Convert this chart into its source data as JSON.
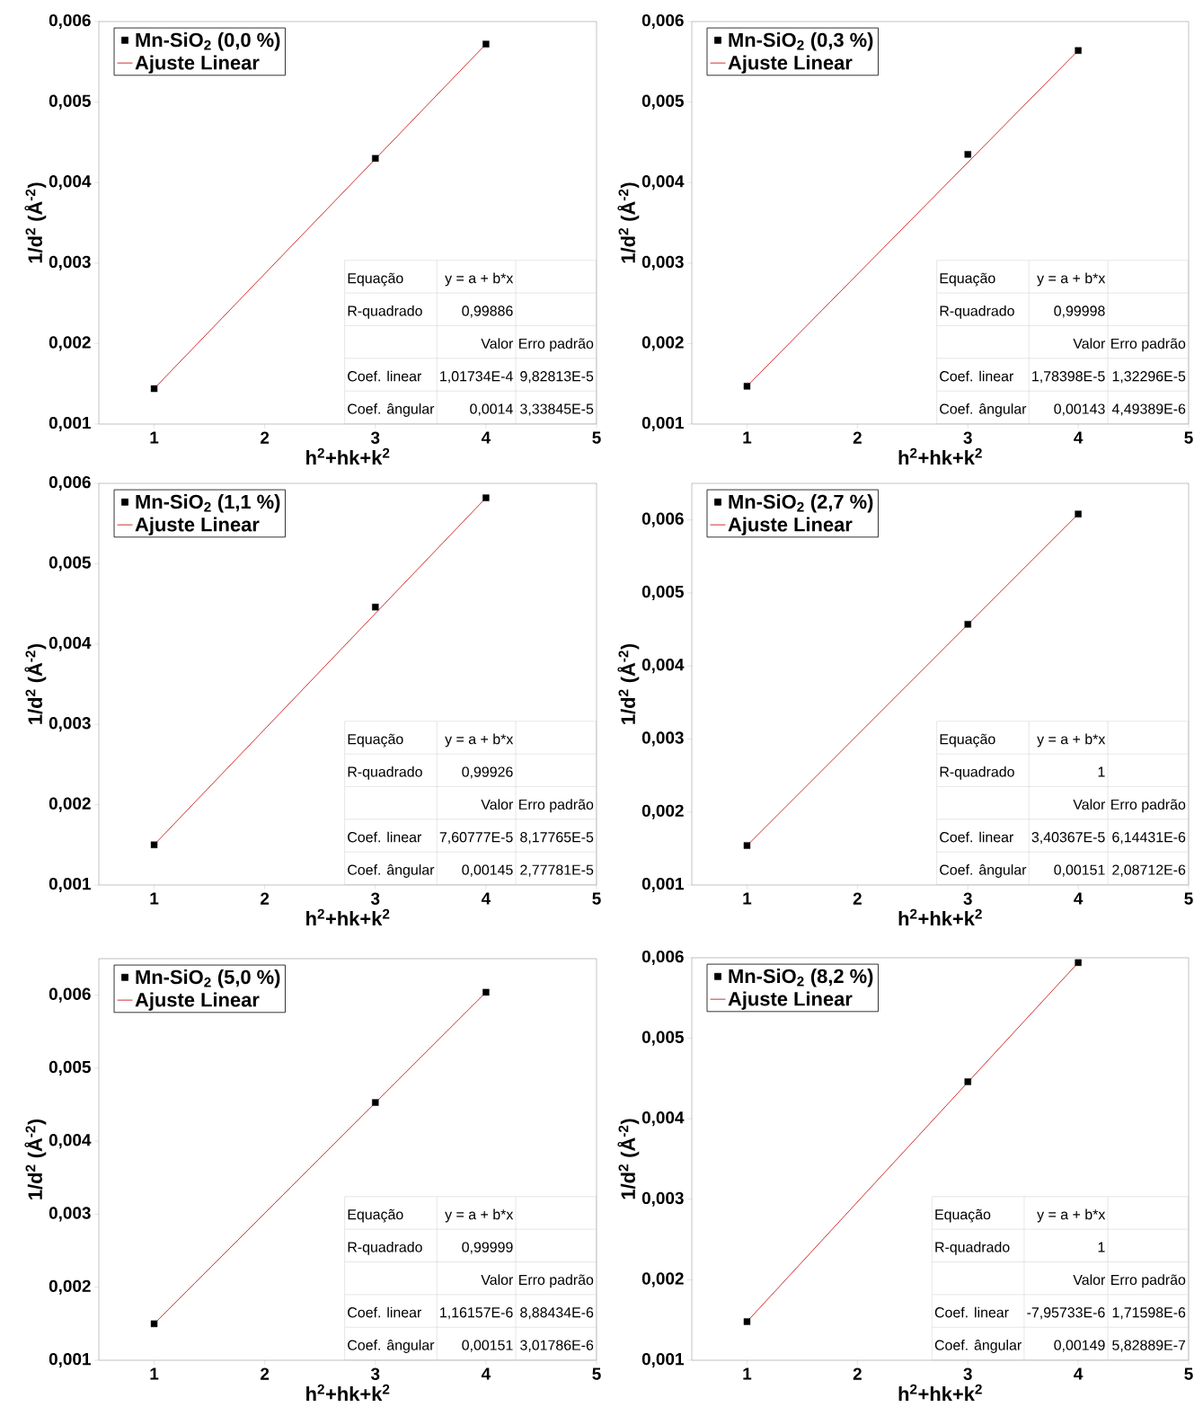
{
  "chart_data": [
    {
      "type": "scatter",
      "legend": "top left",
      "xlabel": "h$^{2}$+hk+k$^{2}$",
      "ylabel": "1/d$^{2}$ (Å$^{-2}$)",
      "xlim": [
        0.5,
        5
      ],
      "xticks": [
        1,
        2,
        3,
        4,
        5
      ],
      "ylim": [
        0.001,
        0.006
      ],
      "yticks": [
        {
          "value": 0.001,
          "label": "0,001"
        },
        {
          "value": 0.002,
          "label": "0,002"
        },
        {
          "value": 0.003,
          "label": "0,003"
        },
        {
          "value": 0.004,
          "label": "0,004"
        },
        {
          "value": 0.005,
          "label": "0,005"
        },
        {
          "value": 0.006,
          "label": "0,006"
        }
      ],
      "series": [
        {
          "name": "Mn-SiO$_{2}$ (0,0 %)",
          "type": "scatter",
          "marker": "square",
          "color": "#000000",
          "x": [
            1,
            3,
            4
          ],
          "values": [
            0.00144,
            0.0043,
            0.00572
          ]
        },
        {
          "name": "Ajuste Linear",
          "type": "line",
          "marker": "none",
          "color": "#d03030",
          "x": [
            1,
            4
          ],
          "values": [
            0.00144,
            0.00572
          ]
        }
      ],
      "annotations": [
        "Equação",
        "y = a + b*x",
        "R-quadrado",
        "0,99886",
        "Valor",
        "Erro padrão",
        "Coef. linear",
        "1,01734E-4",
        "9,82813E-5",
        "Coef. ângular",
        "0,0014",
        "3,33845E-5"
      ]
    },
    {
      "type": "scatter",
      "legend": "top left",
      "xlabel": "h$^{2}$+hk+k$^{2}$",
      "ylabel": "1/d$^{2}$ (Å$^{-2}$)",
      "xlim": [
        0.5,
        5
      ],
      "xticks": [
        1,
        2,
        3,
        4,
        5
      ],
      "ylim": [
        0.001,
        0.006
      ],
      "yticks": [
        {
          "value": 0.001,
          "label": "0,001"
        },
        {
          "value": 0.002,
          "label": "0,002"
        },
        {
          "value": 0.003,
          "label": "0,003"
        },
        {
          "value": 0.004,
          "label": "0,004"
        },
        {
          "value": 0.005,
          "label": "0,005"
        },
        {
          "value": 0.006,
          "label": "0,006"
        }
      ],
      "series": [
        {
          "name": "Mn-SiO$_{2}$ (0,3 %)",
          "type": "scatter",
          "marker": "square",
          "color": "#000000",
          "x": [
            1,
            3,
            4
          ],
          "values": [
            0.00147,
            0.00435,
            0.00564
          ]
        },
        {
          "name": "Ajuste Linear",
          "type": "line",
          "marker": "none",
          "color": "#d03030",
          "x": [
            1,
            4
          ],
          "values": [
            0.00147,
            0.00564
          ]
        }
      ],
      "annotations": [
        "Equação",
        "y = a + b*x",
        "R-quadrado",
        "0,99998",
        "Valor",
        "Erro padrão",
        "Coef. linear",
        "1,78398E-5",
        "1,32296E-5",
        "Coef. ângular",
        "0,00143",
        "4,49389E-6"
      ]
    },
    {
      "type": "scatter",
      "legend": "top left",
      "xlabel": "h$^{2}$+hk+k$^{2}$",
      "ylabel": "1/d$^{2}$ (Å$^{-2}$)",
      "xlim": [
        0.5,
        5
      ],
      "xticks": [
        1,
        2,
        3,
        4,
        5
      ],
      "ylim": [
        0.001,
        0.006
      ],
      "yticks": [
        {
          "value": 0.001,
          "label": "0,001"
        },
        {
          "value": 0.002,
          "label": "0,002"
        },
        {
          "value": 0.003,
          "label": "0,003"
        },
        {
          "value": 0.004,
          "label": "0,004"
        },
        {
          "value": 0.005,
          "label": "0,005"
        },
        {
          "value": 0.006,
          "label": "0,006"
        }
      ],
      "series": [
        {
          "name": "Mn-SiO$_{2}$ (1,1 %)",
          "type": "scatter",
          "marker": "square",
          "color": "#000000",
          "x": [
            1,
            3,
            4
          ],
          "values": [
            0.0015,
            0.00446,
            0.00582
          ]
        },
        {
          "name": "Ajuste Linear",
          "type": "line",
          "marker": "none",
          "color": "#d03030",
          "x": [
            1,
            4
          ],
          "values": [
            0.0015,
            0.00582
          ]
        }
      ],
      "annotations": [
        "Equação",
        "y = a + b*x",
        "R-quadrado",
        "0,99926",
        "Valor",
        "Erro padrão",
        "Coef. linear",
        "7,60777E-5",
        "8,17765E-5",
        "Coef. ângular",
        "0,00145",
        "2,77781E-5"
      ]
    },
    {
      "type": "scatter",
      "legend": "top left",
      "xlabel": "h$^{2}$+hk+k$^{2}$",
      "ylabel": "1/d$^{2}$ (Å$^{-2}$)",
      "xlim": [
        0.5,
        5
      ],
      "xticks": [
        1,
        2,
        3,
        4,
        5
      ],
      "ylim": [
        0.001,
        0.0065
      ],
      "yticks": [
        {
          "value": 0.001,
          "label": "0,001"
        },
        {
          "value": 0.002,
          "label": "0,002"
        },
        {
          "value": 0.003,
          "label": "0,003"
        },
        {
          "value": 0.004,
          "label": "0,004"
        },
        {
          "value": 0.005,
          "label": "0,005"
        },
        {
          "value": 0.006,
          "label": "0,006"
        }
      ],
      "series": [
        {
          "name": "Mn-SiO$_{2}$ (2,7 %)",
          "type": "scatter",
          "marker": "square",
          "color": "#000000",
          "x": [
            1,
            3,
            4
          ],
          "values": [
            0.00154,
            0.00457,
            0.00608
          ]
        },
        {
          "name": "Ajuste Linear",
          "type": "line",
          "marker": "none",
          "color": "#d03030",
          "x": [
            1,
            4
          ],
          "values": [
            0.00154,
            0.00608
          ]
        }
      ],
      "annotations": [
        "Equação",
        "y = a + b*x",
        "R-quadrado",
        "1",
        "Valor",
        "Erro padrão",
        "Coef. linear",
        "3,40367E-5",
        "6,14431E-6",
        "Coef. ângular",
        "0,00151",
        "2,08712E-6"
      ]
    },
    {
      "type": "scatter",
      "legend": "top left",
      "xlabel": "h$^{2}$+hk+k$^{2}$",
      "ylabel": "1/d$^{2}$ (Å$^{-2}$)",
      "xlim": [
        0.5,
        5
      ],
      "xticks": [
        1,
        2,
        3,
        4,
        5
      ],
      "ylim": [
        0.001,
        0.0065
      ],
      "yticks": [
        {
          "value": 0.001,
          "label": "0,001"
        },
        {
          "value": 0.002,
          "label": "0,002"
        },
        {
          "value": 0.003,
          "label": "0,003"
        },
        {
          "value": 0.004,
          "label": "0,004"
        },
        {
          "value": 0.005,
          "label": "0,005"
        },
        {
          "value": 0.006,
          "label": "0,006"
        }
      ],
      "series": [
        {
          "name": "Mn-SiO$_{2}$ (5,0 %)",
          "type": "scatter",
          "marker": "square",
          "color": "#000000",
          "x": [
            1,
            3,
            4
          ],
          "values": [
            0.0015,
            0.00453,
            0.00604
          ]
        },
        {
          "name": "Ajuste Linear",
          "type": "line",
          "marker": "none",
          "color": "#d03030",
          "x": [
            1,
            4
          ],
          "values": [
            0.0015,
            0.00604
          ]
        }
      ],
      "annotations": [
        "Equação",
        "y = a + b*x",
        "R-quadrado",
        "0,99999",
        "Valor",
        "Erro padrão",
        "Coef. linear",
        "1,16157E-6",
        "8,88434E-6",
        "Coef. ângular",
        "0,00151",
        "3,01786E-6"
      ]
    },
    {
      "type": "scatter",
      "legend": "top left",
      "xlabel": "h$^{2}$+hk+k$^{2}$",
      "ylabel": "1/d$^{2}$ (Å$^{-2}$)",
      "xlim": [
        0.5,
        5
      ],
      "xticks": [
        1,
        2,
        3,
        4,
        5
      ],
      "ylim": [
        0.001,
        0.006
      ],
      "yticks": [
        {
          "value": 0.001,
          "label": "0,001"
        },
        {
          "value": 0.002,
          "label": "0,002"
        },
        {
          "value": 0.003,
          "label": "0,003"
        },
        {
          "value": 0.004,
          "label": "0,004"
        },
        {
          "value": 0.005,
          "label": "0,005"
        },
        {
          "value": 0.006,
          "label": "0,006"
        }
      ],
      "series": [
        {
          "name": "Mn-SiO$_{2}$ (8,2 %)",
          "type": "scatter",
          "marker": "square",
          "color": "#000000",
          "x": [
            1,
            3,
            4
          ],
          "values": [
            0.00148,
            0.00446,
            0.00594
          ]
        },
        {
          "name": "Ajuste Linear",
          "type": "line",
          "marker": "none",
          "color": "#d03030",
          "x": [
            1,
            4
          ],
          "values": [
            0.00148,
            0.00594
          ]
        }
      ],
      "annotations": [
        "Equação",
        "y = a + b*x",
        "R-quadrado",
        "1",
        "Valor",
        "Erro padrão",
        "Coef. linear",
        "-7,95733E-6",
        "1,71598E-6",
        "Coef. ângular",
        "0,00149",
        "5,82889E-7"
      ]
    }
  ]
}
